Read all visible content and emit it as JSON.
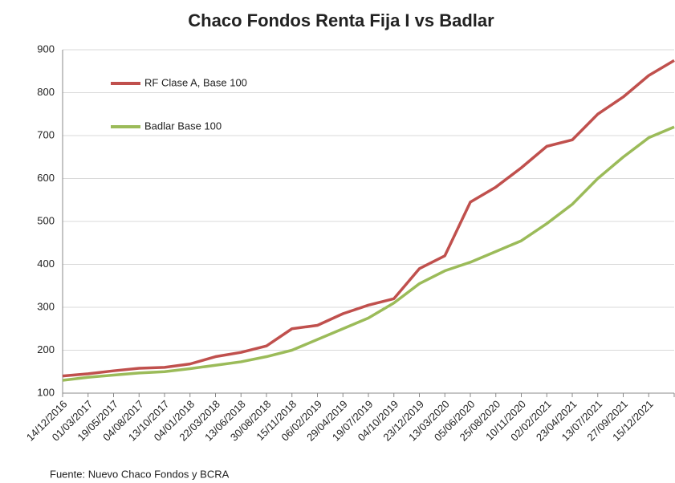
{
  "chart_data": {
    "type": "line",
    "title": "Chaco Fondos Renta Fija I vs Badlar",
    "source": "Fuente:  Nuevo  Chaco Fondos y BCRA",
    "categories": [
      "14/12/2016",
      "01/03/2017",
      "19/05/2017",
      "04/08/2017",
      "13/10/2017",
      "04/01/2018",
      "22/03/2018",
      "13/06/2018",
      "30/08/2018",
      "15/11/2018",
      "06/02/2019",
      "29/04/2019",
      "19/07/2019",
      "04/10/2019",
      "23/12/2019",
      "13/03/2020",
      "05/06/2020",
      "25/08/2020",
      "10/11/2020",
      "02/02/2021",
      "23/04/2021",
      "13/07/2021",
      "27/09/2021",
      "15/12/2021",
      null
    ],
    "series": [
      {
        "name": "RF Clase A, Base 100",
        "color": "#c0504d",
        "values": [
          140,
          145,
          152,
          158,
          160,
          168,
          185,
          195,
          210,
          250,
          258,
          285,
          305,
          320,
          390,
          420,
          545,
          580,
          625,
          675,
          690,
          750,
          790,
          840,
          875
        ]
      },
      {
        "name": "Badlar Base 100",
        "color": "#9bbb59",
        "values": [
          130,
          137,
          142,
          147,
          150,
          157,
          165,
          173,
          185,
          200,
          225,
          250,
          275,
          310,
          355,
          385,
          405,
          430,
          455,
          495,
          540,
          600,
          650,
          695,
          720
        ]
      }
    ],
    "ylim": [
      100,
      900
    ],
    "yticks": [
      100,
      200,
      300,
      400,
      500,
      600,
      700,
      800,
      900
    ],
    "grid": true,
    "legend": "upper-left"
  }
}
